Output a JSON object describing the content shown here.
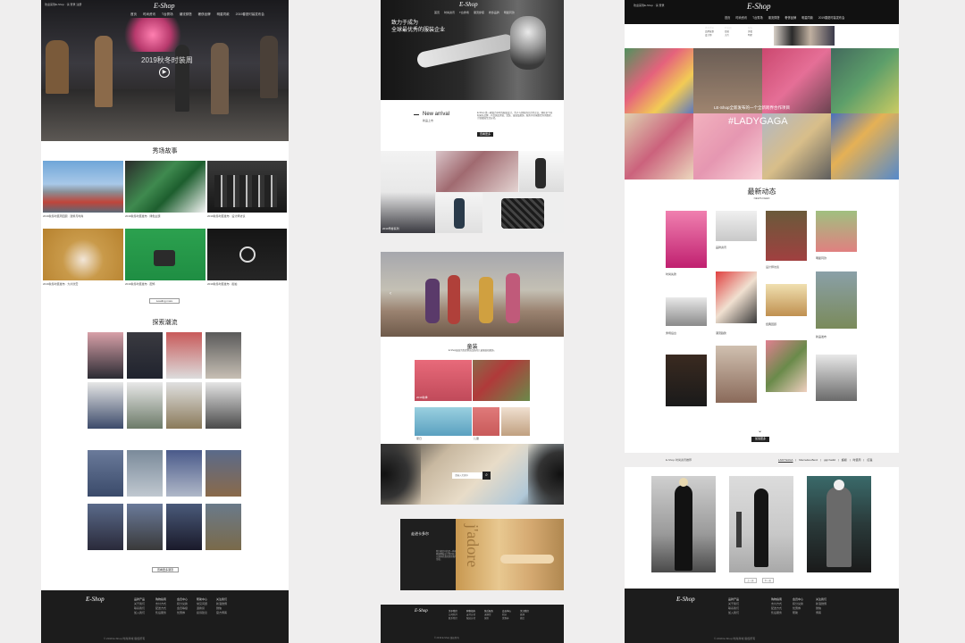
{
  "brand": "E-Shop",
  "panel1": {
    "topbar": "欢迎来到E-Shop · 请 登录 注册",
    "nav": [
      "首页",
      "时尚资讯",
      "T台秀场",
      "潮流穿搭",
      "奢侈品牌",
      "明星同款",
      "2019春夏时装发布会"
    ],
    "hero_text": "2019秋冬时装周",
    "section1_title": "秀场故事",
    "story_captions": [
      "2019秋冬时装周回顾 · 建筑与时尚",
      "2019秋冬时装发布 · 绿色主题",
      "2019秋冬时装发布 · 设计师访谈",
      "2019秋冬时装发布 · 大片欣赏",
      "2019秋冬时装发布 · 配饰",
      "2019秋冬时装发布 · 街拍"
    ],
    "load_more": "Loading more",
    "section2_title": "探索潮流",
    "view_more": "查看更多潮流",
    "footer_cols": [
      [
        "品牌产品",
        "关于我们",
        "联系我们",
        "加入我们"
      ],
      [
        "购物指南",
        "支付方式",
        "配送方式",
        "售后服务"
      ],
      [
        "会员中心",
        "积分兑换",
        "会员等级",
        "优惠券"
      ],
      [
        "帮助中心",
        "常见问题",
        "退换货",
        "投诉建议"
      ],
      [
        "关注我们",
        "新浪微博",
        "微信",
        "官方博客"
      ]
    ],
    "copyright": "© 2019 E-Shop 时尚商城 版权所有"
  },
  "panel2": {
    "nav": [
      "首页",
      "时尚资讯",
      "T台秀场",
      "潮流穿搭",
      "奢侈品牌",
      "明星同款"
    ],
    "hero_line1": "致力于成为",
    "hero_line2": "全球最优秀的服装企业",
    "new_arrival": "New arrival",
    "new_arrival_sub": "新品上市",
    "intro_text": "E-Shop 是一家致力于时尚服装设计、生产与销售的综合型企业，拥有多个国际知名品牌，产品涵盖男装、女装、童装及配饰，服务于全球数百万消费者，引领潮流生活方式。",
    "more_btn": "查看更多",
    "product_captions": [
      "2019早春系列",
      "时尚印花",
      "经典配饰"
    ],
    "kids_title": "童装",
    "kids_sub": "E-Shop童装为您提供高品质的儿童服装和配饰。",
    "kids_captions": [
      "2019秋季",
      "夏日",
      "儿童",
      "女童"
    ],
    "search_placeholder": "请输入关键字",
    "promo_title": "走进卡多尔",
    "promo_text": "我们相信时尚是一种态度，每一件作品都凝聚着设计师的匠心与对美的追求。从面料的选择到剪裁的细节，力求完美呈现。",
    "jadore": "j'adore",
    "footer_cols": [
      [
        "关于我们",
        "公司简介",
        "联系我们"
      ],
      [
        "购物指南",
        "支付方式",
        "配送方式"
      ],
      [
        "售后服务",
        "退换货",
        "保修"
      ],
      [
        "会员中心",
        "积分",
        "优惠券"
      ],
      [
        "关注我们",
        "微博",
        "微信"
      ]
    ],
    "copyright": "© 2019 E-Shop 版权所有"
  },
  "panel3": {
    "topbar": "欢迎来到E-Shop · 请 登录",
    "nav": [
      "首页",
      "时尚资讯",
      "T台秀场",
      "潮流穿搭",
      "奢侈品牌",
      "明星同款",
      "2019春夏时装发布会"
    ],
    "submenu": [
      [
        "秀场资讯",
        "品牌故事",
        "设计师"
      ],
      [
        "时装周",
        "街拍",
        "大片"
      ],
      [
        "配饰",
        "美妆",
        "明星"
      ]
    ],
    "gaga_text": "LE-Shop全新发布的一个全新跨界合作项目",
    "hashtag": "#LADYGAGA",
    "news_title": "最新动态",
    "news_sub": "NEWS FEED",
    "news_captions": [
      "时尚先锋",
      "品牌资讯",
      "设计师访谈",
      "明星同款",
      "秀场后台",
      "潮流趋势",
      "经典回顾",
      "新品发布"
    ],
    "load_more": "加载更多",
    "filter_left": "E-Shop·时尚资讯推荐",
    "filters": [
      "LADYGAGA",
      "Mercedes-Benz",
      "gigi hadid",
      "超模",
      "时装周",
      "红毯"
    ],
    "pager": [
      "上一页",
      "下一页"
    ],
    "footer_cols": [
      [
        "品牌产品",
        "关于我们",
        "联系我们",
        "加入我们"
      ],
      [
        "购物指南",
        "支付方式",
        "配送方式",
        "售后服务"
      ],
      [
        "会员中心",
        "积分兑换",
        "优惠券",
        "帮助"
      ],
      [
        "关注我们",
        "新浪微博",
        "微信",
        "博客"
      ]
    ],
    "copyright": "© 2019 E-Shop 时尚商城 版权所有"
  }
}
